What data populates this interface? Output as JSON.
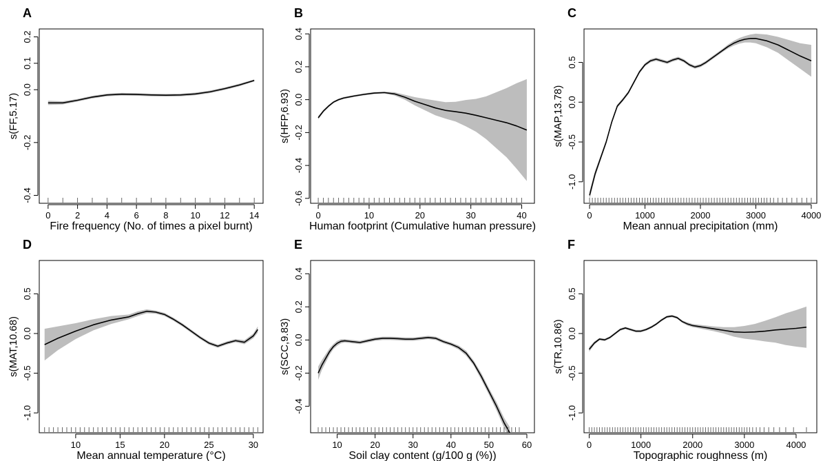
{
  "colors": {
    "ink": "#000000",
    "band": "#bdbdbd",
    "rug": "#555555"
  },
  "chart_data": [
    {
      "type": "line",
      "panel": "A",
      "xlabel": "Fire frequency (No. of times a pixel burnt)",
      "ylabel": "s(FF,5.17)",
      "xlim": [
        -0.6,
        14.6
      ],
      "ylim": [
        -0.43,
        0.23
      ],
      "xticks": [
        0,
        2,
        4,
        6,
        8,
        10,
        12,
        14
      ],
      "yticks": [
        -0.4,
        -0.2,
        0.0,
        0.1,
        0.2
      ],
      "ytick_labels": [
        "-0.4",
        "-0.2",
        "0.0",
        "0.1",
        "0.2"
      ],
      "grid": false,
      "series": [
        {
          "x": [
            0,
            1,
            2,
            3,
            4,
            5,
            6,
            7,
            8,
            9,
            10,
            11,
            12,
            13,
            14
          ],
          "y": [
            -0.05,
            -0.05,
            -0.04,
            -0.028,
            -0.02,
            -0.017,
            -0.018,
            -0.02,
            -0.021,
            -0.02,
            -0.016,
            -0.008,
            0.004,
            0.018,
            0.035
          ],
          "se": [
            0.008,
            0.006,
            0.005,
            0.005,
            0.005,
            0.005,
            0.005,
            0.005,
            0.005,
            0.005,
            0.005,
            0.005,
            0.005,
            0.005,
            0.004
          ]
        }
      ],
      "rug": [
        0,
        1,
        2,
        3,
        4,
        5,
        6,
        7,
        8,
        9,
        10,
        11,
        12,
        13,
        14
      ]
    },
    {
      "type": "line",
      "panel": "B",
      "xlabel": "Human footprint (Cumulative human pressure)",
      "ylabel": "s(HFP,6.93)",
      "xlim": [
        -1.5,
        42.5
      ],
      "ylim": [
        -0.63,
        0.43
      ],
      "xticks": [
        0,
        10,
        20,
        30,
        40
      ],
      "yticks": [
        -0.6,
        -0.4,
        -0.2,
        0.0,
        0.2,
        0.4
      ],
      "ytick_labels": [
        "-0.6",
        "-0.4",
        "-0.2",
        "0.0",
        "0.2",
        "0.4"
      ],
      "grid": false,
      "series": [
        {
          "x": [
            0,
            1,
            2,
            3,
            4,
            5,
            7,
            9,
            11,
            13,
            15,
            17,
            19,
            21,
            23,
            25,
            27,
            29,
            31,
            33,
            35,
            37,
            39,
            41
          ],
          "y": [
            -0.11,
            -0.07,
            -0.04,
            -0.015,
            0.0,
            0.01,
            0.022,
            0.032,
            0.04,
            0.043,
            0.035,
            0.015,
            -0.01,
            -0.03,
            -0.05,
            -0.065,
            -0.073,
            -0.082,
            -0.095,
            -0.11,
            -0.125,
            -0.14,
            -0.16,
            -0.185
          ],
          "se": [
            0.01,
            0.008,
            0.007,
            0.006,
            0.006,
            0.006,
            0.006,
            0.006,
            0.006,
            0.006,
            0.01,
            0.015,
            0.025,
            0.035,
            0.045,
            0.05,
            0.06,
            0.08,
            0.1,
            0.13,
            0.17,
            0.21,
            0.26,
            0.31
          ]
        }
      ],
      "rug": [
        0,
        1,
        2,
        3,
        4,
        5,
        6,
        7,
        8,
        9,
        10,
        11,
        12,
        13,
        14,
        15,
        16,
        17,
        18,
        19,
        20,
        21,
        22,
        23,
        24,
        25,
        26,
        27,
        28,
        29,
        30,
        31,
        32,
        33,
        34,
        35,
        36,
        37,
        38,
        39,
        40
      ]
    },
    {
      "type": "line",
      "panel": "C",
      "xlabel": "Mean annual precipitation (mm)",
      "ylabel": "s(MAP,13.78)",
      "xlim": [
        -100,
        4100
      ],
      "ylim": [
        -1.27,
        0.92
      ],
      "xticks": [
        0,
        1000,
        2000,
        3000,
        4000
      ],
      "yticks": [
        -1.0,
        -0.5,
        0.0,
        0.5
      ],
      "ytick_labels": [
        "-1.0",
        "-0.5",
        "0.0",
        "0.5"
      ],
      "grid": false,
      "series": [
        {
          "x": [
            0,
            100,
            200,
            300,
            400,
            500,
            600,
            700,
            800,
            900,
            1000,
            1100,
            1200,
            1300,
            1400,
            1500,
            1600,
            1700,
            1800,
            1900,
            2000,
            2100,
            2200,
            2300,
            2400,
            2500,
            2600,
            2700,
            2800,
            2900,
            3000,
            3200,
            3400,
            3600,
            3800,
            4000
          ],
          "y": [
            -1.17,
            -0.9,
            -0.7,
            -0.5,
            -0.25,
            -0.05,
            0.03,
            0.12,
            0.25,
            0.38,
            0.47,
            0.52,
            0.54,
            0.52,
            0.5,
            0.53,
            0.55,
            0.52,
            0.47,
            0.44,
            0.46,
            0.5,
            0.55,
            0.6,
            0.65,
            0.7,
            0.74,
            0.77,
            0.79,
            0.8,
            0.8,
            0.77,
            0.72,
            0.65,
            0.58,
            0.52
          ],
          "se": [
            0.05,
            0.04,
            0.03,
            0.025,
            0.02,
            0.02,
            0.02,
            0.02,
            0.02,
            0.02,
            0.02,
            0.02,
            0.02,
            0.02,
            0.02,
            0.02,
            0.02,
            0.02,
            0.02,
            0.02,
            0.02,
            0.02,
            0.02,
            0.02,
            0.02,
            0.025,
            0.03,
            0.035,
            0.04,
            0.05,
            0.06,
            0.08,
            0.1,
            0.13,
            0.16,
            0.2
          ]
        }
      ],
      "rug": [
        0,
        50,
        100,
        150,
        200,
        250,
        300,
        350,
        400,
        450,
        500,
        550,
        600,
        650,
        700,
        750,
        800,
        850,
        900,
        950,
        1000,
        1050,
        1100,
        1150,
        1200,
        1250,
        1300,
        1350,
        1400,
        1450,
        1500,
        1550,
        1600,
        1650,
        1700,
        1750,
        1800,
        1850,
        1900,
        1950,
        2000,
        2050,
        2100,
        2150,
        2200,
        2250,
        2300,
        2350,
        2400,
        2450,
        2500,
        2550,
        2600,
        2650,
        2700,
        2750,
        2800,
        2850,
        2900,
        2950,
        3000,
        3050,
        3100,
        3150,
        3200,
        3260,
        3320,
        3400,
        3480,
        3560,
        3650,
        3740,
        3830,
        3920,
        4000
      ]
    },
    {
      "type": "line",
      "panel": "D",
      "xlabel": "Mean annual temperature (°C)",
      "ylabel": "s(MAT,10.68)",
      "xlim": [
        5.9,
        31.1
      ],
      "ylim": [
        -1.25,
        0.92
      ],
      "xticks": [
        10,
        15,
        20,
        25,
        30
      ],
      "yticks": [
        -1.0,
        -0.5,
        0.0,
        0.5
      ],
      "ytick_labels": [
        "-1.0",
        "-0.5",
        "0.0",
        "0.5"
      ],
      "grid": false,
      "series": [
        {
          "x": [
            6.5,
            8,
            10,
            12,
            14,
            16,
            17,
            18,
            19,
            20,
            21,
            22,
            23,
            24,
            25,
            26,
            27,
            28,
            29,
            30,
            30.5
          ],
          "y": [
            -0.14,
            -0.06,
            0.03,
            0.11,
            0.17,
            0.21,
            0.25,
            0.28,
            0.27,
            0.24,
            0.18,
            0.11,
            0.03,
            -0.05,
            -0.12,
            -0.16,
            -0.12,
            -0.09,
            -0.11,
            -0.03,
            0.05
          ],
          "se": [
            0.2,
            0.15,
            0.1,
            0.07,
            0.05,
            0.03,
            0.03,
            0.025,
            0.02,
            0.02,
            0.02,
            0.02,
            0.02,
            0.02,
            0.02,
            0.02,
            0.02,
            0.02,
            0.025,
            0.03,
            0.04
          ]
        }
      ],
      "rug": [
        6.5,
        7,
        7.5,
        8,
        8.5,
        9,
        9.5,
        10,
        10.5,
        11,
        11.5,
        12,
        12.5,
        13,
        13.5,
        14,
        14.5,
        15,
        15.5,
        16,
        16.5,
        17,
        17.5,
        18,
        18.5,
        19,
        19.5,
        20,
        20.5,
        21,
        21.5,
        22,
        22.5,
        23,
        23.5,
        24,
        24.5,
        25,
        25.5,
        26,
        26.5,
        27,
        27.5,
        28,
        28.5,
        29,
        29.5,
        30,
        30.5
      ]
    },
    {
      "type": "line",
      "panel": "E",
      "xlabel": "Soil clay content (g/100 g (%))",
      "ylabel": "s(SCC,9.83)",
      "xlim": [
        3,
        62
      ],
      "ylim": [
        -0.56,
        0.48
      ],
      "xticks": [
        10,
        20,
        30,
        40,
        50,
        60
      ],
      "yticks": [
        -0.4,
        -0.2,
        0.0,
        0.2,
        0.4
      ],
      "ytick_labels": [
        "-0.4",
        "-0.2",
        "0.0",
        "0.2",
        "0.4"
      ],
      "grid": false,
      "series": [
        {
          "x": [
            5,
            6,
            7,
            8,
            9,
            10,
            11,
            12,
            14,
            16,
            18,
            20,
            22,
            24,
            26,
            28,
            30,
            32,
            34,
            36,
            38,
            40,
            42,
            44,
            46,
            48,
            50,
            52,
            54,
            55.5
          ],
          "y": [
            -0.2,
            -0.15,
            -0.11,
            -0.07,
            -0.04,
            -0.02,
            -0.008,
            -0.005,
            -0.01,
            -0.015,
            -0.005,
            0.005,
            0.01,
            0.01,
            0.008,
            0.005,
            0.005,
            0.01,
            0.015,
            0.01,
            -0.01,
            -0.025,
            -0.045,
            -0.08,
            -0.14,
            -0.22,
            -0.31,
            -0.4,
            -0.5,
            -0.56
          ],
          "se": [
            0.04,
            0.03,
            0.025,
            0.02,
            0.015,
            0.015,
            0.012,
            0.01,
            0.01,
            0.01,
            0.01,
            0.01,
            0.01,
            0.01,
            0.01,
            0.01,
            0.01,
            0.01,
            0.01,
            0.01,
            0.01,
            0.01,
            0.012,
            0.015,
            0.015,
            0.02,
            0.02,
            0.025,
            0.03,
            0.035
          ]
        }
      ],
      "rug": [
        5,
        6,
        7,
        8,
        9,
        10,
        11,
        12,
        13,
        14,
        15,
        16,
        17,
        18,
        19,
        20,
        21,
        22,
        23,
        24,
        25,
        26,
        27,
        28,
        29,
        30,
        31,
        32,
        33,
        34,
        35,
        36,
        37,
        38,
        39,
        40,
        41,
        42,
        43,
        44,
        45,
        46,
        47,
        48,
        49,
        50,
        51,
        52,
        53,
        54,
        55,
        56,
        57,
        58
      ]
    },
    {
      "type": "line",
      "panel": "F",
      "xlabel": "Topographic roughness (m)",
      "ylabel": "s(TR,10.86)",
      "xlim": [
        -100,
        4400
      ],
      "ylim": [
        -1.25,
        0.92
      ],
      "xticks": [
        0,
        1000,
        2000,
        3000,
        4000
      ],
      "yticks": [
        -1.0,
        -0.5,
        0.0,
        0.5
      ],
      "ytick_labels": [
        "-1.0",
        "-0.5",
        "0.0",
        "0.5"
      ],
      "grid": false,
      "series": [
        {
          "x": [
            0,
            100,
            200,
            300,
            400,
            500,
            600,
            700,
            800,
            900,
            1000,
            1100,
            1200,
            1300,
            1400,
            1500,
            1600,
            1700,
            1800,
            1900,
            2000,
            2200,
            2400,
            2600,
            2800,
            3000,
            3200,
            3400,
            3600,
            3800,
            4000,
            4200
          ],
          "y": [
            -0.2,
            -0.12,
            -0.07,
            -0.08,
            -0.05,
            0.0,
            0.05,
            0.07,
            0.05,
            0.03,
            0.03,
            0.05,
            0.08,
            0.12,
            0.17,
            0.21,
            0.22,
            0.2,
            0.15,
            0.12,
            0.1,
            0.08,
            0.06,
            0.04,
            0.02,
            0.015,
            0.02,
            0.03,
            0.045,
            0.055,
            0.065,
            0.08
          ],
          "se": [
            0.03,
            0.02,
            0.015,
            0.015,
            0.015,
            0.015,
            0.015,
            0.015,
            0.015,
            0.015,
            0.015,
            0.015,
            0.015,
            0.015,
            0.015,
            0.015,
            0.015,
            0.015,
            0.015,
            0.02,
            0.02,
            0.025,
            0.03,
            0.04,
            0.06,
            0.08,
            0.1,
            0.13,
            0.16,
            0.2,
            0.23,
            0.26
          ]
        }
      ],
      "rug": [
        0,
        50,
        100,
        150,
        200,
        250,
        300,
        350,
        400,
        450,
        500,
        550,
        600,
        650,
        700,
        750,
        800,
        850,
        900,
        950,
        1000,
        1050,
        1100,
        1150,
        1200,
        1250,
        1300,
        1350,
        1400,
        1450,
        1500,
        1550,
        1600,
        1650,
        1700,
        1750,
        1800,
        1850,
        1900,
        1950,
        2000,
        2050,
        2100,
        2150,
        2200,
        2250,
        2300,
        2350,
        2400,
        2450,
        2500,
        2550,
        2600,
        2650,
        2700,
        2750,
        2800,
        2850,
        2900,
        2950,
        3000,
        3050,
        3100,
        3160,
        3230,
        3300,
        3380,
        3470,
        3570,
        3680,
        3800,
        3950,
        4200
      ]
    }
  ]
}
